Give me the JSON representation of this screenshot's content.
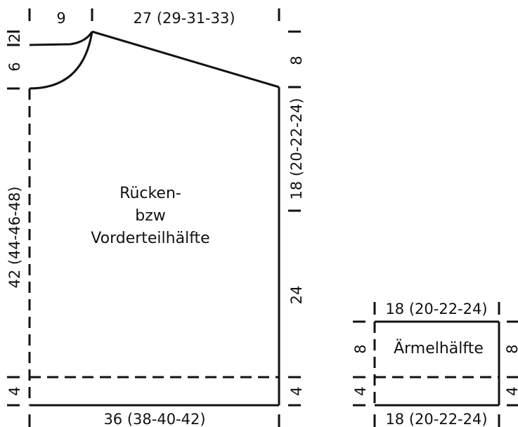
{
  "body_piece": {
    "name_lines": [
      "Rücken-",
      "bzw",
      "Vorderteilhälfte"
    ],
    "top": {
      "neck_width": "9",
      "shoulder_width": "27 (29-31-33)"
    },
    "bottom_width": "36 (38-40-42)",
    "left": {
      "neck_top": "2",
      "neck_depth": "6",
      "length": "42 (44-46-48)",
      "rib": "4"
    },
    "right": {
      "shoulder_drop": "8",
      "armhole": "18 (20-22-24)",
      "side": "24",
      "rib": "4"
    }
  },
  "sleeve_piece": {
    "name": "Ärmelhälfte",
    "top_width": "18 (20-22-24)",
    "bottom_width": "18 (20-22-24)",
    "left": {
      "upper": "8",
      "rib": "4"
    },
    "right": {
      "upper": "8",
      "rib": "4"
    }
  }
}
